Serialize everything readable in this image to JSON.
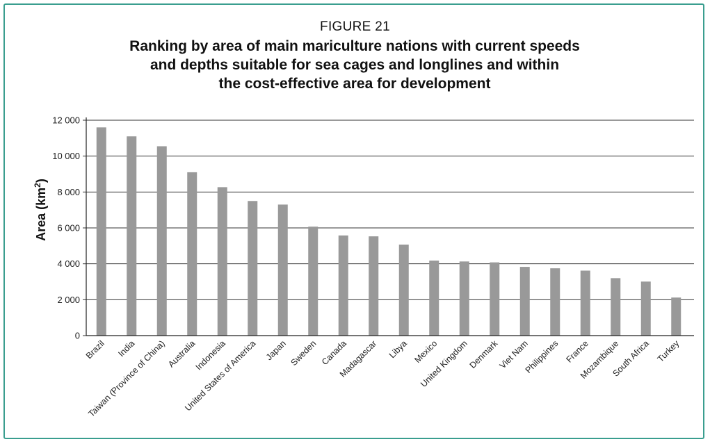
{
  "figure": {
    "label": "FIGURE 21",
    "title_lines": [
      "Ranking by area of main mariculture nations with current speeds",
      "and depths suitable for sea cages and longlines and within",
      "the cost-effective area for development"
    ]
  },
  "chart_data": {
    "type": "bar",
    "title": "Ranking by area of main mariculture nations with current speeds and depths suitable for sea cages and longlines and within the cost-effective area for development",
    "xlabel": "",
    "ylabel": "Area (km",
    "ylabel_superscript": "2",
    "ylabel_close": ")",
    "ylim": [
      0,
      12000
    ],
    "y_ticks": [
      0,
      2000,
      4000,
      6000,
      8000,
      10000,
      12000
    ],
    "y_tick_labels": [
      "0",
      "2 000",
      "4 000",
      "6 000",
      "8 000",
      "10 000",
      "12 000"
    ],
    "grid": true,
    "bar_color": "#999999",
    "categories": [
      "Brazil",
      "India",
      "Taiwan (Province of China)",
      "Australia",
      "Indonesia",
      "United States of America",
      "Japan",
      "Sweden",
      "Canada",
      "Madagascar",
      "Libya",
      "Mexico",
      "United Kingdom",
      "Denmark",
      "Viet Nam",
      "Philippines",
      "France",
      "Mozambique",
      "South Africa",
      "Turkey"
    ],
    "values": [
      11600,
      11100,
      10550,
      9100,
      8270,
      7500,
      7300,
      6070,
      5580,
      5530,
      5070,
      4180,
      4130,
      4080,
      3830,
      3750,
      3620,
      3200,
      3010,
      2120
    ]
  },
  "colors": {
    "frame_border": "#3a9e8f",
    "bars": "#999999",
    "grid": "#333333"
  }
}
